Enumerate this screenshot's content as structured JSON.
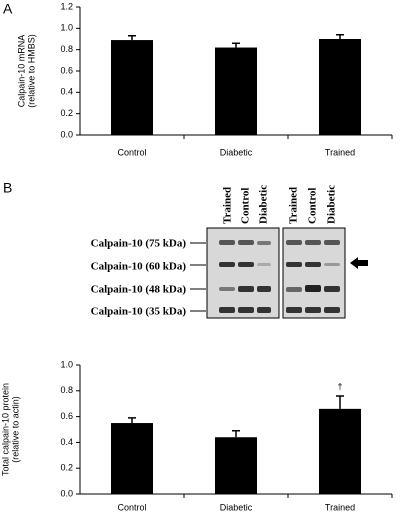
{
  "panel_labels": [
    "A",
    "B"
  ],
  "chart_data": [
    {
      "type": "bar",
      "y_label": [
        "Calpain-10 mRNA",
        "(relative to HMBS)"
      ],
      "categories": [
        "Control",
        "Diabetic",
        "Trained"
      ],
      "values": [
        0.89,
        0.82,
        0.9
      ],
      "errors": [
        0.04,
        0.04,
        0.04
      ],
      "color": "#000000",
      "ylim": [
        0,
        1.2
      ],
      "yticks": [
        {
          "value": 0,
          "label": "0.0"
        },
        0.2,
        0.4,
        0.6,
        0.8,
        {
          "value": 1,
          "label": "1.0"
        },
        1.2
      ],
      "grid": false
    },
    {
      "type": "bar",
      "y_label": [
        "Total calpain-10 protein",
        "(relative to actin)"
      ],
      "categories": [
        "Control",
        "Diabetic",
        "Trained"
      ],
      "values": [
        0.55,
        0.44,
        0.66
      ],
      "errors": [
        0.04,
        0.05,
        0.1
      ],
      "color": "#000000",
      "ylim": [
        0,
        1
      ],
      "yticks": [
        {
          "value": 0,
          "label": "0.0"
        },
        0.2,
        0.4,
        0.6,
        0.8,
        {
          "value": 1,
          "label": "1.0"
        }
      ],
      "grid": false,
      "annotations": [
        {
          "text": "†",
          "x": "Trained"
        }
      ]
    }
  ],
  "blot": {
    "lanes": [
      "Trained",
      "Control",
      "Diabetic",
      "Trained",
      "Control",
      "Diabetic"
    ],
    "bands": [
      "Calpain-10 (75 kDa)",
      "Calpain-10 (60 kDa)",
      "Calpain-10 (48 kDa)",
      "Calpain-10 (35 kDa)"
    ]
  }
}
